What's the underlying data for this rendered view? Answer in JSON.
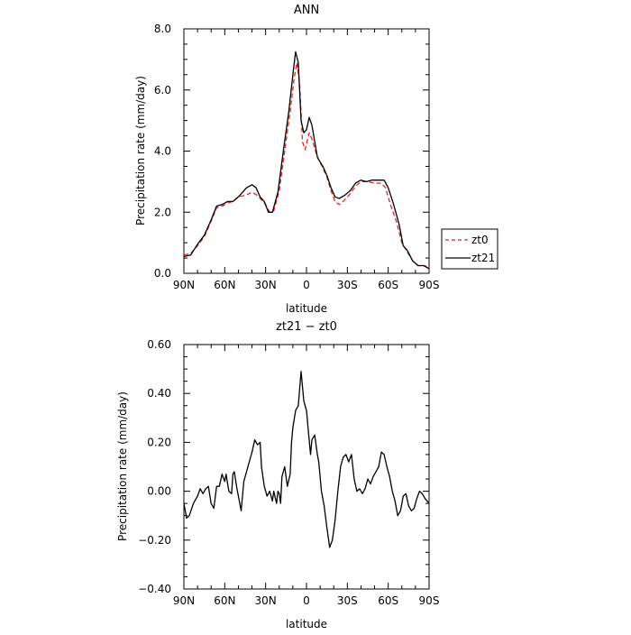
{
  "chart_data": [
    {
      "type": "line",
      "title": "ANN",
      "xlabel": "latitude",
      "ylabel": "Precipitation rate (mm/day)",
      "xlim": [
        90,
        -90
      ],
      "ylim": [
        0.0,
        8.0
      ],
      "xticks": [
        90,
        60,
        30,
        0,
        -30,
        -60,
        -90
      ],
      "xtick_labels": [
        "90N",
        "60N",
        "30N",
        "0",
        "30S",
        "60S",
        "90S"
      ],
      "yticks": [
        0.0,
        2.0,
        4.0,
        6.0,
        8.0
      ],
      "ytick_labels": [
        "0.0",
        "2.0",
        "4.0",
        "6.0",
        "8.0"
      ],
      "legend_position": "right",
      "series": [
        {
          "name": "zt0",
          "color": "#e8231f",
          "dash": "dashed",
          "points": [
            [
              90,
              0.6
            ],
            [
              85,
              0.65
            ],
            [
              80,
              0.9
            ],
            [
              75,
              1.2
            ],
            [
              70,
              1.7
            ],
            [
              66,
              2.15
            ],
            [
              62,
              2.2
            ],
            [
              58,
              2.3
            ],
            [
              54,
              2.35
            ],
            [
              50,
              2.5
            ],
            [
              45,
              2.55
            ],
            [
              40,
              2.65
            ],
            [
              36,
              2.55
            ],
            [
              33,
              2.4
            ],
            [
              30,
              2.25
            ],
            [
              27,
              2.0
            ],
            [
              24,
              2.05
            ],
            [
              20,
              2.7
            ],
            [
              16,
              4.0
            ],
            [
              12,
              5.3
            ],
            [
              9,
              6.4
            ],
            [
              7,
              6.9
            ],
            [
              5,
              6.2
            ],
            [
              3,
              4.3
            ],
            [
              1,
              4.05
            ],
            [
              -2,
              4.6
            ],
            [
              -4,
              4.4
            ],
            [
              -8,
              3.8
            ],
            [
              -12,
              3.45
            ],
            [
              -15,
              3.15
            ],
            [
              -18,
              2.7
            ],
            [
              -21,
              2.35
            ],
            [
              -24,
              2.25
            ],
            [
              -28,
              2.4
            ],
            [
              -32,
              2.6
            ],
            [
              -36,
              2.85
            ],
            [
              -40,
              3.0
            ],
            [
              -45,
              3.0
            ],
            [
              -50,
              2.95
            ],
            [
              -55,
              2.95
            ],
            [
              -58,
              2.8
            ],
            [
              -62,
              2.2
            ],
            [
              -66,
              1.7
            ],
            [
              -70,
              1.0
            ],
            [
              -74,
              0.7
            ],
            [
              -78,
              0.4
            ],
            [
              -82,
              0.25
            ],
            [
              -86,
              0.25
            ],
            [
              -90,
              0.2
            ]
          ]
        },
        {
          "name": "zt21",
          "color": "#000000",
          "dash": "solid",
          "points": [
            [
              90,
              0.55
            ],
            [
              85,
              0.6
            ],
            [
              80,
              0.95
            ],
            [
              75,
              1.25
            ],
            [
              70,
              1.75
            ],
            [
              66,
              2.2
            ],
            [
              62,
              2.25
            ],
            [
              58,
              2.35
            ],
            [
              54,
              2.35
            ],
            [
              50,
              2.5
            ],
            [
              47,
              2.65
            ],
            [
              44,
              2.8
            ],
            [
              40,
              2.9
            ],
            [
              37,
              2.8
            ],
            [
              34,
              2.5
            ],
            [
              31,
              2.35
            ],
            [
              28,
              2.0
            ],
            [
              25,
              2.0
            ],
            [
              21,
              2.65
            ],
            [
              17,
              4.0
            ],
            [
              13,
              5.3
            ],
            [
              10,
              6.5
            ],
            [
              8,
              7.25
            ],
            [
              6,
              6.9
            ],
            [
              4,
              5.0
            ],
            [
              2,
              4.6
            ],
            [
              0,
              4.7
            ],
            [
              -2,
              5.1
            ],
            [
              -4,
              4.85
            ],
            [
              -8,
              3.8
            ],
            [
              -12,
              3.5
            ],
            [
              -15,
              3.2
            ],
            [
              -18,
              2.8
            ],
            [
              -21,
              2.5
            ],
            [
              -24,
              2.45
            ],
            [
              -28,
              2.55
            ],
            [
              -32,
              2.7
            ],
            [
              -36,
              2.95
            ],
            [
              -40,
              3.05
            ],
            [
              -44,
              3.0
            ],
            [
              -48,
              3.05
            ],
            [
              -53,
              3.05
            ],
            [
              -57,
              3.05
            ],
            [
              -60,
              2.8
            ],
            [
              -64,
              2.25
            ],
            [
              -68,
              1.6
            ],
            [
              -71,
              0.9
            ],
            [
              -74,
              0.75
            ],
            [
              -78,
              0.4
            ],
            [
              -82,
              0.25
            ],
            [
              -86,
              0.25
            ],
            [
              -90,
              0.15
            ]
          ]
        }
      ]
    },
    {
      "type": "line",
      "title": "zt21 − zt0",
      "xlabel": "latitude",
      "ylabel": "Precipitation rate (mm/day)",
      "xlim": [
        90,
        -90
      ],
      "ylim": [
        -0.4,
        0.6
      ],
      "xticks": [
        90,
        60,
        30,
        0,
        -30,
        -60,
        -90
      ],
      "xtick_labels": [
        "90N",
        "60N",
        "30N",
        "0",
        "30S",
        "60S",
        "90S"
      ],
      "yticks": [
        -0.4,
        -0.2,
        0.0,
        0.2,
        0.4,
        0.6
      ],
      "ytick_labels": [
        "−0.40",
        "−0.20",
        "0.00",
        "0.20",
        "0.40",
        "0.60"
      ],
      "series": [
        {
          "color": "#000000",
          "dash": "solid",
          "points": [
            [
              90,
              -0.05
            ],
            [
              88,
              -0.11
            ],
            [
              86,
              -0.1
            ],
            [
              83,
              -0.05
            ],
            [
              80,
              -0.02
            ],
            [
              78,
              0.01
            ],
            [
              76,
              -0.01
            ],
            [
              74,
              0.01
            ],
            [
              72,
              0.02
            ],
            [
              70,
              -0.05
            ],
            [
              68,
              -0.07
            ],
            [
              66,
              0.02
            ],
            [
              64,
              0.02
            ],
            [
              62,
              0.07
            ],
            [
              60,
              0.04
            ],
            [
              59,
              0.07
            ],
            [
              57,
              0.0
            ],
            [
              55,
              -0.01
            ],
            [
              54,
              0.07
            ],
            [
              53,
              0.08
            ],
            [
              51,
              0.01
            ],
            [
              49,
              -0.05
            ],
            [
              48,
              -0.08
            ],
            [
              46,
              0.04
            ],
            [
              44,
              0.08
            ],
            [
              42,
              0.12
            ],
            [
              40,
              0.16
            ],
            [
              38,
              0.21
            ],
            [
              36,
              0.19
            ],
            [
              34,
              0.2
            ],
            [
              33,
              0.1
            ],
            [
              31,
              0.02
            ],
            [
              29,
              -0.02
            ],
            [
              27,
              0.0
            ],
            [
              25,
              -0.04
            ],
            [
              24,
              0.0
            ],
            [
              22,
              -0.05
            ],
            [
              21,
              0.0
            ],
            [
              20,
              -0.01
            ],
            [
              19,
              -0.05
            ],
            [
              18,
              0.06
            ],
            [
              16,
              0.1
            ],
            [
              14,
              0.02
            ],
            [
              12,
              0.07
            ],
            [
              11,
              0.2
            ],
            [
              10,
              0.26
            ],
            [
              8,
              0.33
            ],
            [
              6,
              0.35
            ],
            [
              4,
              0.49
            ],
            [
              2,
              0.37
            ],
            [
              0,
              0.33
            ],
            [
              -1,
              0.27
            ],
            [
              -3,
              0.15
            ],
            [
              -4,
              0.21
            ],
            [
              -6,
              0.23
            ],
            [
              -8,
              0.15
            ],
            [
              -9,
              0.12
            ],
            [
              -11,
              0.0
            ],
            [
              -13,
              -0.06
            ],
            [
              -15,
              -0.15
            ],
            [
              -17,
              -0.23
            ],
            [
              -19,
              -0.2
            ],
            [
              -21,
              -0.12
            ],
            [
              -23,
              0.0
            ],
            [
              -25,
              0.1
            ],
            [
              -27,
              0.14
            ],
            [
              -29,
              0.15
            ],
            [
              -31,
              0.12
            ],
            [
              -33,
              0.15
            ],
            [
              -35,
              0.05
            ],
            [
              -37,
              0.0
            ],
            [
              -39,
              0.01
            ],
            [
              -41,
              -0.01
            ],
            [
              -43,
              0.01
            ],
            [
              -45,
              0.05
            ],
            [
              -47,
              0.03
            ],
            [
              -49,
              0.06
            ],
            [
              -51,
              0.08
            ],
            [
              -53,
              0.1
            ],
            [
              -55,
              0.16
            ],
            [
              -57,
              0.15
            ],
            [
              -59,
              0.1
            ],
            [
              -61,
              0.06
            ],
            [
              -63,
              0.0
            ],
            [
              -65,
              -0.04
            ],
            [
              -67,
              -0.1
            ],
            [
              -69,
              -0.08
            ],
            [
              -71,
              -0.02
            ],
            [
              -73,
              -0.01
            ],
            [
              -75,
              -0.06
            ],
            [
              -77,
              -0.08
            ],
            [
              -79,
              -0.07
            ],
            [
              -81,
              -0.03
            ],
            [
              -83,
              0.0
            ],
            [
              -85,
              -0.01
            ],
            [
              -87,
              -0.03
            ],
            [
              -90,
              -0.05
            ]
          ]
        }
      ]
    }
  ]
}
